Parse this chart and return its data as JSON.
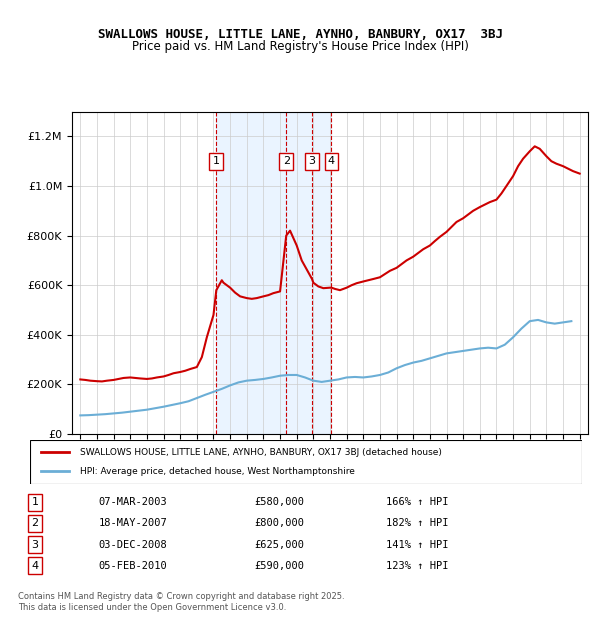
{
  "title": "SWALLOWS HOUSE, LITTLE LANE, AYNHO, BANBURY, OX17  3BJ",
  "subtitle": "Price paid vs. HM Land Registry's House Price Index (HPI)",
  "legend_line1": "SWALLOWS HOUSE, LITTLE LANE, AYNHO, BANBURY, OX17 3BJ (detached house)",
  "legend_line2": "HPI: Average price, detached house, West Northamptonshire",
  "footer": "Contains HM Land Registry data © Crown copyright and database right 2025.\nThis data is licensed under the Open Government Licence v3.0.",
  "transactions": [
    {
      "num": 1,
      "date": "07-MAR-2003",
      "price": 580000,
      "pct": "166%",
      "year": 2003.17
    },
    {
      "num": 2,
      "date": "18-MAY-2007",
      "price": 800000,
      "pct": "182%",
      "year": 2007.37
    },
    {
      "num": 3,
      "date": "03-DEC-2008",
      "price": 625000,
      "pct": "141%",
      "year": 2008.92
    },
    {
      "num": 4,
      "date": "05-FEB-2010",
      "price": 590000,
      "pct": "123%",
      "year": 2010.09
    }
  ],
  "hpi_color": "#6baed6",
  "price_color": "#cc0000",
  "vline_color": "#cc0000",
  "shade_color": "#ddeeff",
  "box_color": "#cc0000",
  "ylim": [
    0,
    1300000
  ],
  "yticks": [
    0,
    200000,
    400000,
    600000,
    800000,
    1000000,
    1200000
  ],
  "xlim_start": 1994.5,
  "xlim_end": 2025.5,
  "hpi_data": {
    "years": [
      1995.0,
      1995.5,
      1996.0,
      1996.5,
      1997.0,
      1997.5,
      1998.0,
      1998.5,
      1999.0,
      1999.5,
      2000.0,
      2000.5,
      2001.0,
      2001.5,
      2002.0,
      2002.5,
      2003.0,
      2003.5,
      2004.0,
      2004.5,
      2005.0,
      2005.5,
      2006.0,
      2006.5,
      2007.0,
      2007.5,
      2008.0,
      2008.5,
      2009.0,
      2009.5,
      2010.0,
      2010.5,
      2011.0,
      2011.5,
      2012.0,
      2012.5,
      2013.0,
      2013.5,
      2014.0,
      2014.5,
      2015.0,
      2015.5,
      2016.0,
      2016.5,
      2017.0,
      2017.5,
      2018.0,
      2018.5,
      2019.0,
      2019.5,
      2020.0,
      2020.5,
      2021.0,
      2021.5,
      2022.0,
      2022.5,
      2023.0,
      2023.5,
      2024.0,
      2024.5
    ],
    "values": [
      75000,
      76000,
      78000,
      80000,
      83000,
      86000,
      90000,
      94000,
      98000,
      104000,
      110000,
      117000,
      124000,
      132000,
      145000,
      158000,
      170000,
      182000,
      196000,
      208000,
      215000,
      218000,
      222000,
      228000,
      235000,
      238000,
      238000,
      228000,
      215000,
      210000,
      215000,
      220000,
      228000,
      230000,
      228000,
      232000,
      238000,
      248000,
      265000,
      278000,
      288000,
      295000,
      305000,
      315000,
      325000,
      330000,
      335000,
      340000,
      345000,
      348000,
      345000,
      360000,
      390000,
      425000,
      455000,
      460000,
      450000,
      445000,
      450000,
      455000
    ]
  },
  "property_data": {
    "years": [
      1995.0,
      1995.3,
      1995.6,
      1996.0,
      1996.3,
      1996.6,
      1997.0,
      1997.3,
      1997.6,
      1998.0,
      1998.3,
      1998.6,
      1999.0,
      1999.3,
      1999.6,
      2000.0,
      2000.3,
      2000.6,
      2001.0,
      2001.3,
      2001.6,
      2002.0,
      2002.3,
      2002.6,
      2003.0,
      2003.17,
      2003.5,
      2003.6,
      2004.0,
      2004.3,
      2004.6,
      2005.0,
      2005.3,
      2005.6,
      2006.0,
      2006.3,
      2006.6,
      2007.0,
      2007.37,
      2007.6,
      2007.8,
      2008.0,
      2008.3,
      2008.92,
      2009.0,
      2009.3,
      2009.6,
      2010.0,
      2010.09,
      2010.3,
      2010.6,
      2011.0,
      2011.3,
      2011.6,
      2012.0,
      2012.3,
      2012.6,
      2013.0,
      2013.3,
      2013.6,
      2014.0,
      2014.3,
      2014.6,
      2015.0,
      2015.3,
      2015.6,
      2016.0,
      2016.3,
      2016.6,
      2017.0,
      2017.3,
      2017.6,
      2018.0,
      2018.3,
      2018.6,
      2019.0,
      2019.3,
      2019.6,
      2020.0,
      2020.3,
      2020.6,
      2021.0,
      2021.3,
      2021.6,
      2022.0,
      2022.3,
      2022.6,
      2023.0,
      2023.3,
      2023.6,
      2024.0,
      2024.3,
      2024.6,
      2025.0
    ],
    "values": [
      220000,
      218000,
      215000,
      213000,
      212000,
      215000,
      218000,
      222000,
      226000,
      228000,
      226000,
      224000,
      222000,
      224000,
      228000,
      232000,
      238000,
      245000,
      250000,
      255000,
      262000,
      270000,
      310000,
      390000,
      480000,
      580000,
      620000,
      610000,
      590000,
      570000,
      555000,
      548000,
      545000,
      548000,
      555000,
      560000,
      568000,
      575000,
      800000,
      820000,
      790000,
      760000,
      700000,
      625000,
      610000,
      595000,
      588000,
      590000,
      590000,
      585000,
      580000,
      590000,
      600000,
      608000,
      615000,
      620000,
      625000,
      632000,
      645000,
      658000,
      670000,
      685000,
      700000,
      715000,
      730000,
      745000,
      760000,
      778000,
      795000,
      815000,
      835000,
      855000,
      870000,
      885000,
      900000,
      915000,
      925000,
      935000,
      945000,
      970000,
      1000000,
      1040000,
      1080000,
      1110000,
      1140000,
      1160000,
      1150000,
      1120000,
      1100000,
      1090000,
      1080000,
      1070000,
      1060000,
      1050000
    ]
  }
}
